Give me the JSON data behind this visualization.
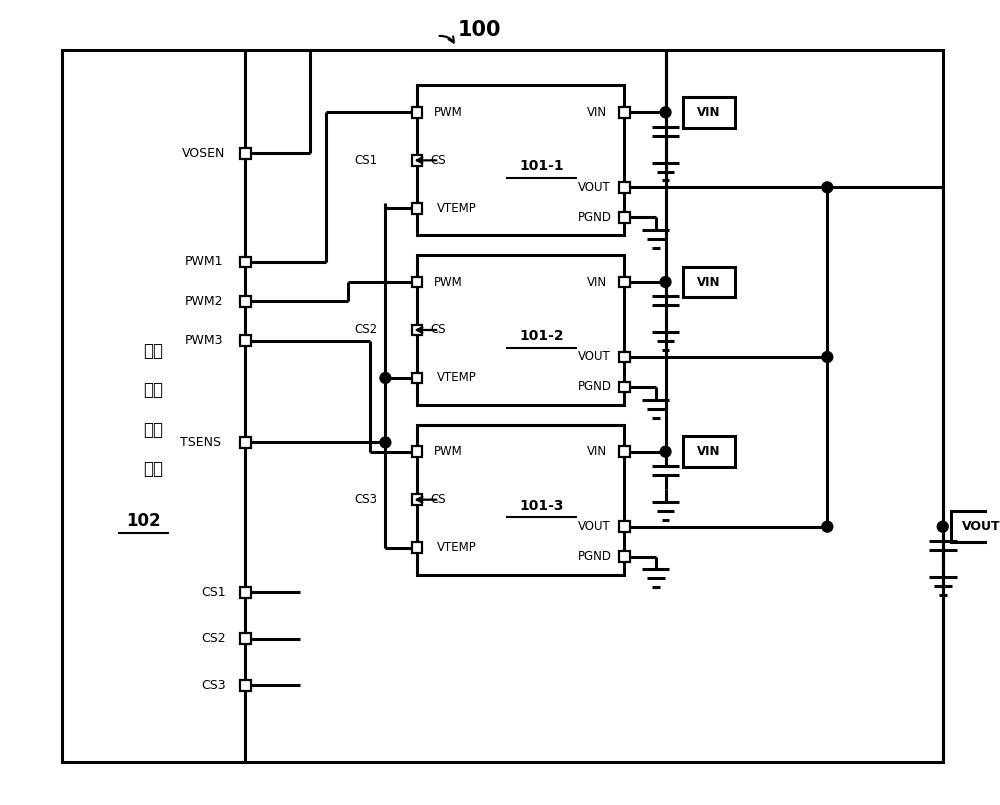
{
  "bg_color": "#ffffff",
  "lw": 2.2,
  "lw_thin": 1.5,
  "fig_w": 10.0,
  "fig_h": 8.05,
  "xlim": [
    0,
    10
  ],
  "ylim": [
    0,
    8.05
  ]
}
